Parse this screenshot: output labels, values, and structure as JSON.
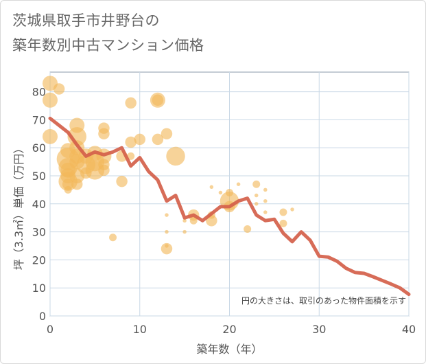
{
  "chart_data": {
    "type": "scatter",
    "title_lines": [
      "茨城県取手市井野台の",
      "築年数別中古マンション価格"
    ],
    "xlabel": "築年数（年）",
    "ylabel": "坪（3.3㎡）単価（万円）",
    "xlim": [
      0,
      40
    ],
    "ylim": [
      0,
      87
    ],
    "x_ticks": [
      0,
      10,
      20,
      30,
      40
    ],
    "y_ticks": [
      0,
      10,
      20,
      30,
      40,
      50,
      60,
      70,
      80
    ],
    "grid": true,
    "note": "円の大きさは、取引のあった物件面積を示す",
    "colors": {
      "bubble": "#f2b85a",
      "line": "#d4604a",
      "grid": "#c9d8e6",
      "plot_border": "#8a9aa8"
    },
    "bubbles": [
      {
        "x": 0,
        "y": 83,
        "s": 2
      },
      {
        "x": 0,
        "y": 77,
        "s": 2
      },
      {
        "x": 0,
        "y": 64,
        "s": 2
      },
      {
        "x": 1,
        "y": 81,
        "s": 1.5
      },
      {
        "x": 2,
        "y": 59,
        "s": 2
      },
      {
        "x": 2,
        "y": 56,
        "s": 3
      },
      {
        "x": 2,
        "y": 53,
        "s": 2.5
      },
      {
        "x": 2,
        "y": 52,
        "s": 2
      },
      {
        "x": 2,
        "y": 50,
        "s": 2
      },
      {
        "x": 2,
        "y": 48,
        "s": 2.5
      },
      {
        "x": 2,
        "y": 47,
        "s": 1.5
      },
      {
        "x": 2,
        "y": 45,
        "s": 1
      },
      {
        "x": 3,
        "y": 68,
        "s": 2
      },
      {
        "x": 3,
        "y": 64,
        "s": 2.5
      },
      {
        "x": 3,
        "y": 60,
        "s": 2
      },
      {
        "x": 3,
        "y": 57,
        "s": 2
      },
      {
        "x": 3,
        "y": 55,
        "s": 2
      },
      {
        "x": 3,
        "y": 50,
        "s": 2
      },
      {
        "x": 3,
        "y": 47,
        "s": 1.5
      },
      {
        "x": 4,
        "y": 57,
        "s": 2
      },
      {
        "x": 4,
        "y": 54,
        "s": 2.5
      },
      {
        "x": 4,
        "y": 51,
        "s": 1.5
      },
      {
        "x": 5,
        "y": 58,
        "s": 2
      },
      {
        "x": 5,
        "y": 55,
        "s": 2.5
      },
      {
        "x": 5,
        "y": 52,
        "s": 2.5
      },
      {
        "x": 6,
        "y": 67,
        "s": 1.5
      },
      {
        "x": 6,
        "y": 65,
        "s": 1.5
      },
      {
        "x": 6,
        "y": 57,
        "s": 2
      },
      {
        "x": 6,
        "y": 54,
        "s": 1.5
      },
      {
        "x": 6,
        "y": 52,
        "s": 1.5
      },
      {
        "x": 7,
        "y": 28,
        "s": 1
      },
      {
        "x": 8,
        "y": 57,
        "s": 1.5
      },
      {
        "x": 8,
        "y": 48,
        "s": 1.5
      },
      {
        "x": 9,
        "y": 76,
        "s": 1.5
      },
      {
        "x": 9,
        "y": 62,
        "s": 1.5
      },
      {
        "x": 9,
        "y": 57,
        "s": 1
      },
      {
        "x": 10,
        "y": 63,
        "s": 1.5
      },
      {
        "x": 12,
        "y": 77,
        "s": 2
      },
      {
        "x": 12,
        "y": 77,
        "s": 1.5
      },
      {
        "x": 12,
        "y": 63,
        "s": 1.5
      },
      {
        "x": 13,
        "y": 65,
        "s": 1.5
      },
      {
        "x": 13,
        "y": 36,
        "s": 0.5
      },
      {
        "x": 13,
        "y": 30,
        "s": 0.5
      },
      {
        "x": 13,
        "y": 25,
        "s": 0.5
      },
      {
        "x": 13,
        "y": 24,
        "s": 1.5
      },
      {
        "x": 14,
        "y": 57,
        "s": 2.5
      },
      {
        "x": 15,
        "y": 34,
        "s": 0.5
      },
      {
        "x": 15,
        "y": 30,
        "s": 0.5
      },
      {
        "x": 16,
        "y": 36,
        "s": 1.5
      },
      {
        "x": 16,
        "y": 34,
        "s": 1
      },
      {
        "x": 18,
        "y": 46,
        "s": 0.5
      },
      {
        "x": 18,
        "y": 36,
        "s": 1
      },
      {
        "x": 18,
        "y": 34,
        "s": 1.5
      },
      {
        "x": 19,
        "y": 44,
        "s": 0.5
      },
      {
        "x": 20,
        "y": 44,
        "s": 1
      },
      {
        "x": 20,
        "y": 41,
        "s": 2.5
      },
      {
        "x": 20,
        "y": 39,
        "s": 1.5
      },
      {
        "x": 21,
        "y": 47,
        "s": 0.5
      },
      {
        "x": 22,
        "y": 31,
        "s": 1
      },
      {
        "x": 23,
        "y": 47,
        "s": 1
      },
      {
        "x": 23,
        "y": 43,
        "s": 0.5
      },
      {
        "x": 23,
        "y": 40,
        "s": 0.5
      },
      {
        "x": 24,
        "y": 45,
        "s": 0.5
      },
      {
        "x": 24,
        "y": 41,
        "s": 0.5
      },
      {
        "x": 24,
        "y": 37,
        "s": 0.5
      },
      {
        "x": 26,
        "y": 37,
        "s": 1
      },
      {
        "x": 26,
        "y": 33,
        "s": 1
      },
      {
        "x": 27,
        "y": 38,
        "s": 0.5
      }
    ],
    "line": {
      "x": [
        0,
        1,
        2,
        3,
        4,
        5,
        6,
        7,
        8,
        9,
        10,
        11,
        12,
        13,
        14,
        15,
        16,
        17,
        18,
        19,
        20,
        21,
        22,
        23,
        24,
        25,
        26,
        27,
        28,
        29,
        30,
        31,
        32,
        33,
        34,
        35,
        36,
        37,
        38,
        39,
        40
      ],
      "y": [
        70.5,
        68,
        65.5,
        61,
        57,
        58.5,
        57.5,
        58.5,
        60,
        53.5,
        56.5,
        51.5,
        48.5,
        41,
        43,
        35,
        36,
        34,
        36.5,
        39,
        39,
        41,
        42,
        36,
        34,
        34.5,
        29.5,
        26.5,
        30,
        27,
        21.3,
        21,
        19.5,
        17,
        15.5,
        15.2,
        14,
        12.7,
        11.4,
        10,
        7.7
      ]
    }
  }
}
